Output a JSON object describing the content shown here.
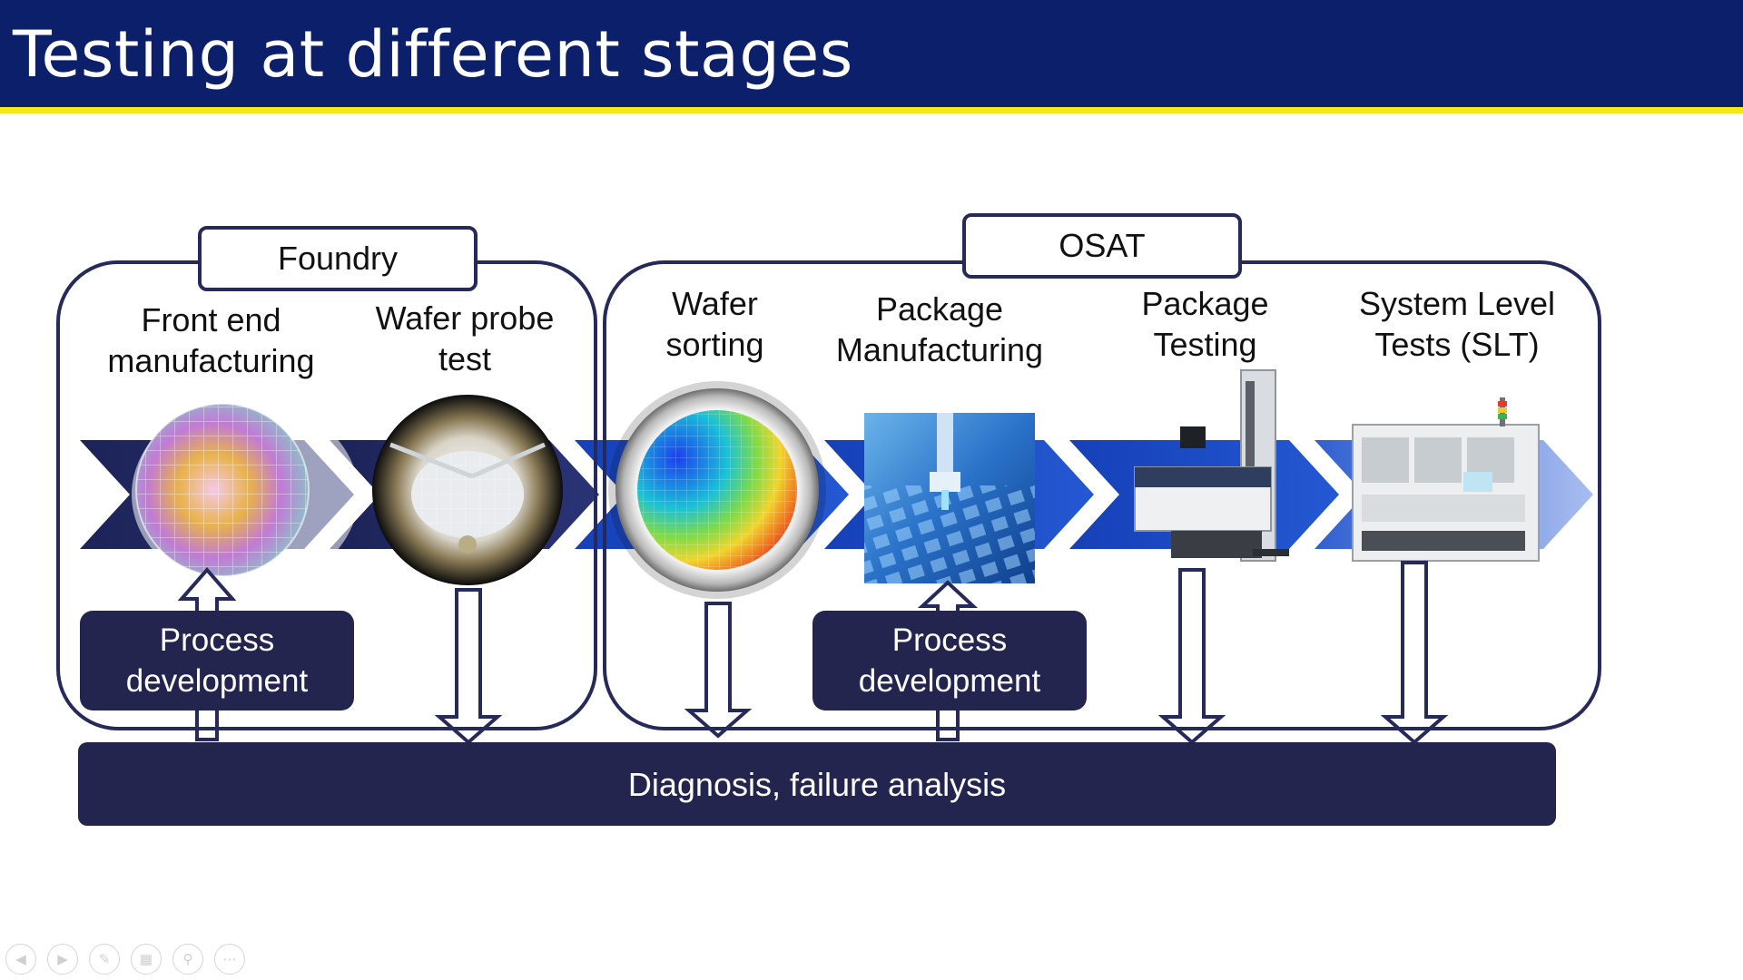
{
  "slide": {
    "title": "Testing at different stages"
  },
  "groups": {
    "foundry": "Foundry",
    "osat": "OSAT"
  },
  "stages": {
    "front_end": "Front end\nmanufacturing",
    "wafer_probe": "Wafer probe\ntest",
    "wafer_sorting": "Wafer\nsorting",
    "package_manufacturing": "Package\nManufacturing",
    "package_testing": "Package\nTesting",
    "slt": "System Level\nTests (SLT)"
  },
  "process_dev": {
    "left": "Process\ndevelopment",
    "right": "Process\ndevelopment"
  },
  "bottom_bar": "Diagnosis, failure analysis",
  "colors": {
    "title_bg": "#0c1f6b",
    "accent_line": "#f4e81c",
    "dark_box": "#23254f",
    "arrow_blue": "#1f4fc4"
  },
  "controls": [
    "previous-icon",
    "next-icon",
    "pen-icon",
    "slides-grid-icon",
    "zoom-icon",
    "more-options-icon"
  ]
}
